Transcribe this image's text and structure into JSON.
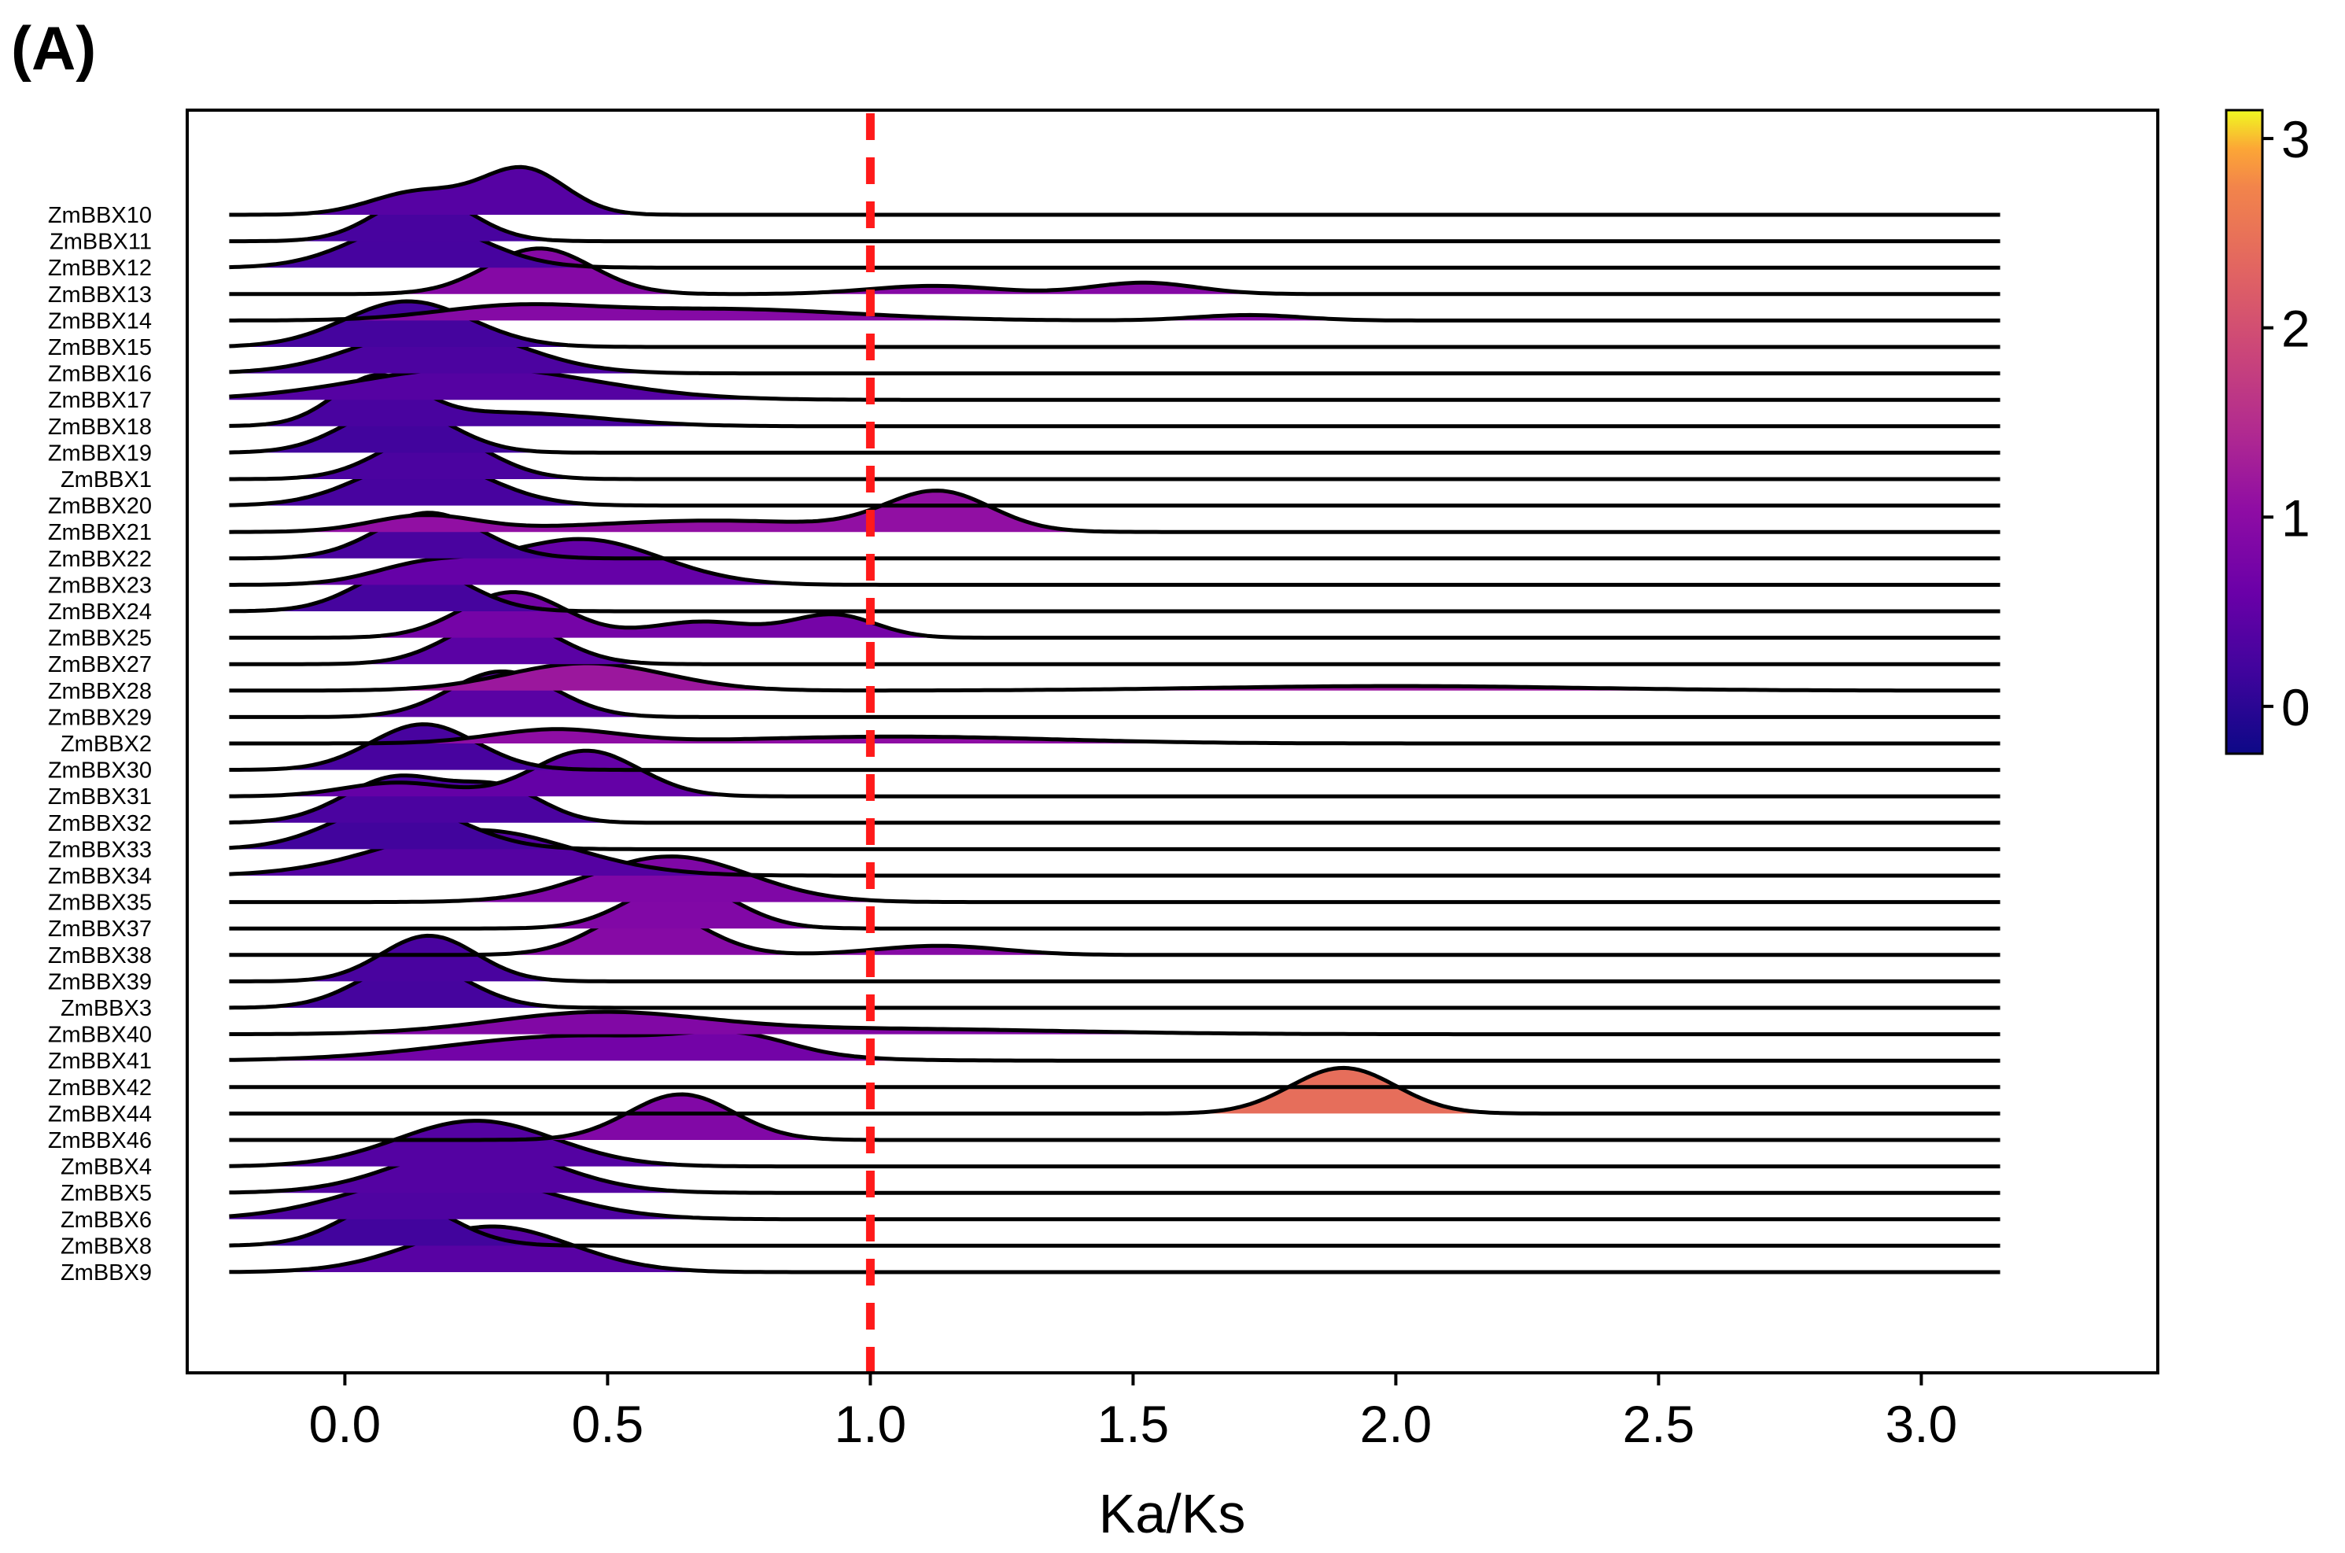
{
  "panel_label": "(A)",
  "chart_data": {
    "type": "ridgeline",
    "xlabel": "Ka/Ks",
    "ylabel": "",
    "xlim": [
      -0.3,
      3.45
    ],
    "x_ticks": [
      "0.0",
      "0.5",
      "1.0",
      "1.5",
      "2.0",
      "2.5",
      "3.0"
    ],
    "x_tick_values": [
      0.0,
      0.5,
      1.0,
      1.5,
      2.0,
      2.5,
      3.0
    ],
    "data_range": [
      -0.22,
      3.15
    ],
    "reference_line": {
      "x": 1.0,
      "color": "#ff1a1a",
      "style": "dashed"
    },
    "colorbar": {
      "colormap": "plasma",
      "range": [
        -0.25,
        3.15
      ],
      "ticks": [
        "0",
        "1",
        "2",
        "3"
      ],
      "tick_values": [
        0,
        1,
        2,
        3
      ]
    },
    "series": [
      {
        "name": "ZmBBX10",
        "peaks": [
          [
            0.34,
            0.08,
            1.0
          ],
          [
            0.14,
            0.09,
            0.5
          ]
        ]
      },
      {
        "name": "ZmBBX11",
        "peaks": [
          [
            0.15,
            0.09,
            1.0
          ]
        ]
      },
      {
        "name": "ZmBBX12",
        "peaks": [
          [
            0.14,
            0.12,
            1.0
          ]
        ]
      },
      {
        "name": "ZmBBX13",
        "peaks": [
          [
            0.37,
            0.1,
            1.0
          ],
          [
            1.12,
            0.12,
            0.18
          ],
          [
            1.52,
            0.1,
            0.25
          ]
        ]
      },
      {
        "name": "ZmBBX14",
        "peaks": [
          [
            0.32,
            0.15,
            0.28
          ],
          [
            0.72,
            0.25,
            0.25
          ],
          [
            1.72,
            0.1,
            0.12
          ]
        ]
      },
      {
        "name": "ZmBBX15",
        "peaks": [
          [
            0.12,
            0.12,
            1.0
          ]
        ]
      },
      {
        "name": "ZmBBX16",
        "peaks": [
          [
            0.18,
            0.15,
            1.0
          ]
        ]
      },
      {
        "name": "ZmBBX17",
        "peaks": [
          [
            0.25,
            0.22,
            0.7
          ]
        ]
      },
      {
        "name": "ZmBBX18",
        "peaks": [
          [
            0.06,
            0.08,
            1.0
          ],
          [
            0.3,
            0.18,
            0.3
          ]
        ]
      },
      {
        "name": "ZmBBX19",
        "peaks": [
          [
            0.1,
            0.1,
            1.0
          ]
        ]
      },
      {
        "name": "ZmBBX1",
        "peaks": [
          [
            0.17,
            0.1,
            1.0
          ]
        ]
      },
      {
        "name": "ZmBBX20",
        "peaks": [
          [
            0.15,
            0.12,
            1.0
          ]
        ]
      },
      {
        "name": "ZmBBX21",
        "peaks": [
          [
            0.15,
            0.1,
            0.35
          ],
          [
            0.7,
            0.25,
            0.25
          ],
          [
            1.13,
            0.1,
            0.85
          ]
        ]
      },
      {
        "name": "ZmBBX22",
        "peaks": [
          [
            0.16,
            0.1,
            1.0
          ]
        ]
      },
      {
        "name": "ZmBBX23",
        "peaks": [
          [
            0.45,
            0.15,
            1.0
          ],
          [
            0.15,
            0.1,
            0.4
          ]
        ]
      },
      {
        "name": "ZmBBX24",
        "peaks": [
          [
            0.13,
            0.1,
            1.0
          ]
        ]
      },
      {
        "name": "ZmBBX25",
        "peaks": [
          [
            0.32,
            0.1,
            1.0
          ],
          [
            0.68,
            0.1,
            0.35
          ],
          [
            0.93,
            0.08,
            0.5
          ]
        ]
      },
      {
        "name": "ZmBBX27",
        "peaks": [
          [
            0.3,
            0.1,
            1.0
          ]
        ]
      },
      {
        "name": "ZmBBX28",
        "peaks": [
          [
            0.46,
            0.15,
            0.6
          ],
          [
            2.0,
            0.35,
            0.1
          ]
        ]
      },
      {
        "name": "ZmBBX29",
        "peaks": [
          [
            0.3,
            0.1,
            1.0
          ]
        ]
      },
      {
        "name": "ZmBBX2",
        "peaks": [
          [
            0.4,
            0.12,
            0.3
          ],
          [
            1.05,
            0.3,
            0.15
          ]
        ]
      },
      {
        "name": "ZmBBX30",
        "peaks": [
          [
            0.15,
            0.1,
            1.0
          ]
        ]
      },
      {
        "name": "ZmBBX31",
        "peaks": [
          [
            0.46,
            0.1,
            1.0
          ],
          [
            0.1,
            0.1,
            0.3
          ]
        ]
      },
      {
        "name": "ZmBBX32",
        "peaks": [
          [
            0.1,
            0.1,
            1.0
          ],
          [
            0.3,
            0.08,
            0.7
          ]
        ]
      },
      {
        "name": "ZmBBX33",
        "peaks": [
          [
            0.1,
            0.12,
            1.0
          ]
        ]
      },
      {
        "name": "ZmBBX34",
        "peaks": [
          [
            0.25,
            0.18,
            1.0
          ]
        ]
      },
      {
        "name": "ZmBBX35",
        "peaks": [
          [
            0.62,
            0.15,
            1.0
          ]
        ]
      },
      {
        "name": "ZmBBX37",
        "peaks": [
          [
            0.64,
            0.1,
            1.0
          ]
        ]
      },
      {
        "name": "ZmBBX38",
        "peaks": [
          [
            0.58,
            0.1,
            1.0
          ],
          [
            1.13,
            0.12,
            0.2
          ]
        ]
      },
      {
        "name": "ZmBBX39",
        "peaks": [
          [
            0.16,
            0.09,
            1.0
          ]
        ]
      },
      {
        "name": "ZmBBX3",
        "peaks": [
          [
            0.13,
            0.1,
            1.0
          ]
        ]
      },
      {
        "name": "ZmBBX40",
        "peaks": [
          [
            0.48,
            0.2,
            0.45
          ],
          [
            1.0,
            0.35,
            0.12
          ]
        ]
      },
      {
        "name": "ZmBBX41",
        "peaks": [
          [
            0.45,
            0.25,
            0.55
          ],
          [
            0.75,
            0.1,
            0.35
          ]
        ]
      },
      {
        "name": "ZmBBX42",
        "peaks": []
      },
      {
        "name": "ZmBBX44",
        "peaks": [
          [
            1.9,
            0.1,
            1.0
          ]
        ]
      },
      {
        "name": "ZmBBX46",
        "peaks": [
          [
            0.64,
            0.1,
            1.0
          ]
        ]
      },
      {
        "name": "ZmBBX4",
        "peaks": [
          [
            0.25,
            0.15,
            1.0
          ]
        ]
      },
      {
        "name": "ZmBBX5",
        "peaks": [
          [
            0.25,
            0.15,
            1.0
          ]
        ]
      },
      {
        "name": "ZmBBX6",
        "peaks": [
          [
            0.2,
            0.18,
            1.0
          ]
        ]
      },
      {
        "name": "ZmBBX8",
        "peaks": [
          [
            0.1,
            0.1,
            1.0
          ]
        ]
      },
      {
        "name": "ZmBBX9",
        "peaks": [
          [
            0.28,
            0.15,
            1.0
          ]
        ]
      }
    ]
  }
}
